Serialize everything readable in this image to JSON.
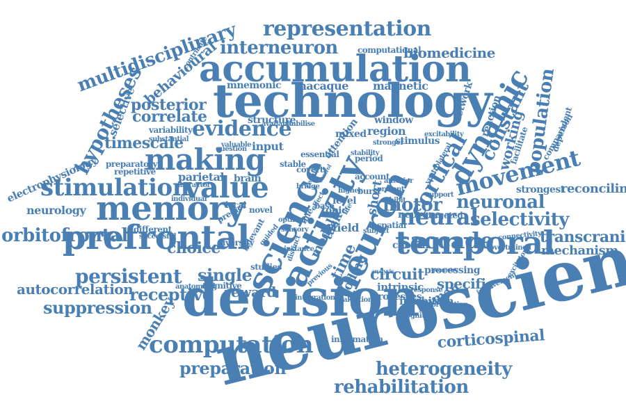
{
  "palette": {
    "word": "#4a7fb3",
    "background": "#ffffff"
  },
  "words": [
    "neuroscience",
    "decision",
    "technology",
    "accumulation",
    "memory",
    "prefrontal",
    "temporal",
    "science",
    "activity",
    "neuron",
    "making",
    "value",
    "stimulation",
    "computation",
    "evidence",
    "representation",
    "interneuron",
    "multidisciplinary",
    "movement",
    "dynamic",
    "cortical",
    "neural",
    "saccade",
    "motor",
    "neuronal",
    "selectivity",
    "population",
    "constant",
    "persistent",
    "single",
    "choice",
    "orbitofrontal",
    "receptive",
    "autocorrelation",
    "suppression",
    "reward",
    "rehabilitation",
    "heterogeneity",
    "preparation",
    "corticospinal",
    "hypotheses",
    "electrophysiology",
    "timescale",
    "correlate",
    "posterior",
    "behavioural",
    "biomedicine",
    "transcranial",
    "mechanism",
    "reconciling",
    "circuit",
    "specific",
    "human",
    "monkey",
    "neurology",
    "parietal",
    "macaque",
    "magnetic",
    "mnemonic",
    "working",
    "selective",
    "coding",
    "time",
    "task",
    "model",
    "network",
    "reaction",
    "strongest",
    "inhibition",
    "intrinsic",
    "processes",
    "processing",
    "neurone",
    "chosen",
    "field",
    "level",
    "short",
    "region",
    "stimulus",
    "window",
    "mixed",
    "structure",
    "input",
    "brain",
    "local",
    "novel",
    "predict",
    "different",
    "successful",
    "diversity",
    "cognitive",
    "anatomical",
    "variability",
    "repetitive",
    "preparatory",
    "information",
    "evaluation",
    "integration",
    "attention",
    "computational",
    "facilitate",
    "comparison",
    "dependent",
    "targeted",
    "stable",
    "contribute",
    "substantial",
    "essential",
    "period",
    "account",
    "burst",
    "exhibit",
    "topic",
    "spatial",
    "connectivity",
    "overtrained",
    "involvement",
    "excitatory",
    "individual",
    "distractor",
    "question",
    "stabilise",
    "available",
    "excitability",
    "stronger",
    "relevant",
    "studies",
    "guided",
    "sensory",
    "covert",
    "higher",
    "result",
    "bridge",
    "control",
    "analysis",
    "geometry",
    "response",
    "prediction",
    "cognition",
    "previous",
    "distinct",
    "effect",
    "instance",
    "optimal",
    "present",
    "subject",
    "line",
    "base",
    "life",
    "ventrolateral",
    "support",
    "anterior",
    "valuable",
    "stability",
    "output"
  ]
}
